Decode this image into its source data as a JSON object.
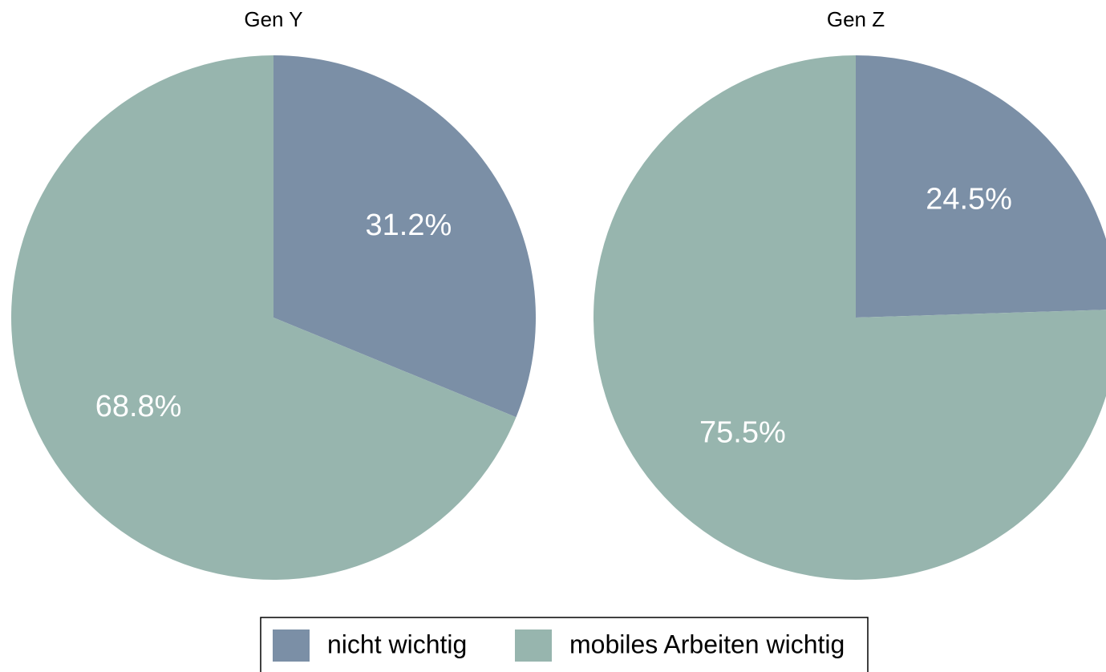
{
  "chart_data": [
    {
      "type": "pie",
      "title": "Gen Y",
      "categories": [
        "nicht wichtig",
        "mobiles Arbeiten wichtig"
      ],
      "values": [
        31.2,
        68.8
      ],
      "value_labels": [
        "31.2%",
        "68.8%"
      ],
      "colors": [
        "#7b8fa6",
        "#97b5ae"
      ],
      "legend": "bottom"
    },
    {
      "type": "pie",
      "title": "Gen Z",
      "categories": [
        "nicht wichtig",
        "mobiles Arbeiten wichtig"
      ],
      "values": [
        24.5,
        75.5
      ],
      "value_labels": [
        "24.5%",
        "75.5%"
      ],
      "colors": [
        "#7b8fa6",
        "#97b5ae"
      ],
      "legend": "bottom"
    }
  ]
}
